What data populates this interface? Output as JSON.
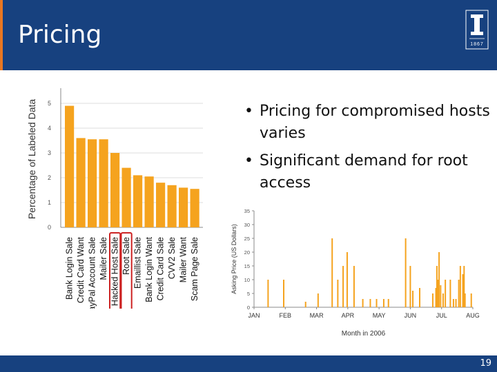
{
  "slide": {
    "title": "Pricing",
    "page_number": "19",
    "logo_text": "1867",
    "bullets": [
      "Pricing for compromised hosts varies",
      "Significant demand for root access"
    ]
  },
  "colors": {
    "header": "#17417f",
    "bar": "#f5a31e",
    "highlight": "#cc2222"
  },
  "chart_data": [
    {
      "type": "bar",
      "ylabel": "Percentage of Labeled Data",
      "xlabel": "",
      "ylim": [
        0,
        5.5
      ],
      "yticks": [
        0,
        1,
        2,
        3,
        4,
        5
      ],
      "categories": [
        "Bank Login Sale",
        "Credit Card Want",
        "PayPal Account Sale",
        "Mailer Sale",
        "Hacked Host Sale",
        "Root Sale",
        "Emaillist Sale",
        "Bank Login Want",
        "Credit Card Sale",
        "CVV2 Sale",
        "Mailer Want",
        "Scam Page Sale"
      ],
      "values": [
        4.9,
        3.6,
        3.55,
        3.55,
        3.0,
        2.4,
        2.1,
        2.05,
        1.8,
        1.7,
        1.6,
        1.55
      ],
      "highlighted": [
        "Hacked Host Sale",
        "Root Sale"
      ],
      "grid": true
    },
    {
      "type": "bar",
      "ylabel": "Asking Price (US Dollars)",
      "xlabel": "Month in 2006",
      "ylim": [
        0,
        35
      ],
      "yticks": [
        0,
        5,
        10,
        15,
        20,
        25,
        30,
        35
      ],
      "xticks": [
        "JAN",
        "FEB",
        "MAR",
        "APR",
        "MAY",
        "JUN",
        "JUL",
        "AUG"
      ],
      "x": [
        0.45,
        0.95,
        1.65,
        2.05,
        2.5,
        2.68,
        2.85,
        2.98,
        3.2,
        3.48,
        3.72,
        3.92,
        4.15,
        4.3,
        4.85,
        5.0,
        5.08,
        5.3,
        5.72,
        5.82,
        5.85,
        5.88,
        5.92,
        5.97,
        6.05,
        6.12,
        6.28,
        6.38,
        6.46,
        6.55,
        6.6,
        6.68,
        6.72,
        6.75,
        6.95
      ],
      "values": [
        10,
        10,
        2,
        5,
        25,
        10,
        15,
        20,
        15,
        3,
        3,
        3,
        3,
        3,
        25,
        15,
        6,
        7,
        5,
        7,
        15,
        10,
        20,
        8,
        5,
        10,
        10,
        3,
        3,
        10,
        15,
        12,
        15,
        5,
        5
      ],
      "grid": false
    }
  ]
}
